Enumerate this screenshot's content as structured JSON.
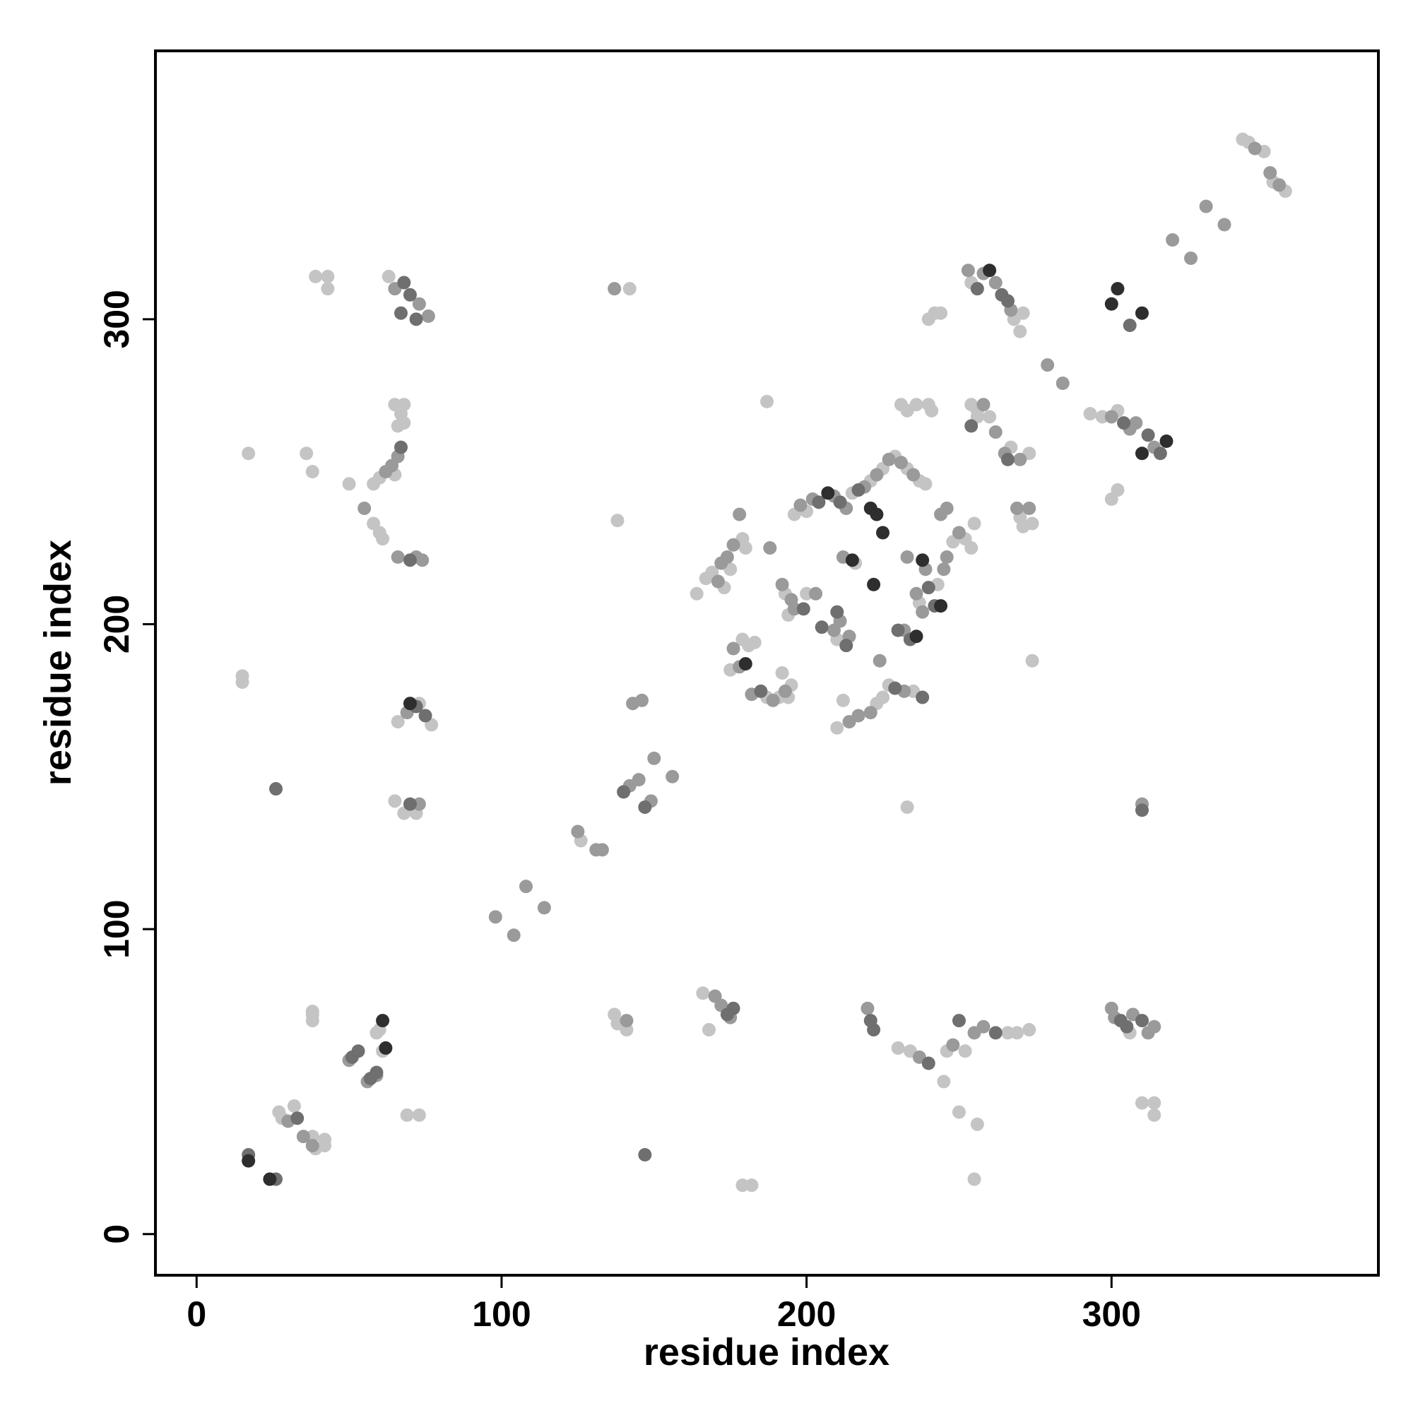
{
  "chart_data": {
    "type": "scatter",
    "xlabel": "residue index",
    "ylabel": "residue index",
    "xlim": [
      -13.5,
      387.5
    ],
    "ylim": [
      -13.5,
      388
    ],
    "xticks": [
      0,
      100,
      200,
      300
    ],
    "yticks": [
      0,
      100,
      200,
      300
    ],
    "grid": false,
    "series": [
      {
        "color": "#c4c4c4",
        "x": [
          27,
          28,
          32,
          38,
          39,
          42,
          42,
          61,
          59,
          60,
          38,
          38,
          38,
          69,
          73,
          65,
          68,
          72,
          77,
          66,
          73,
          65,
          67,
          68,
          66,
          60,
          58,
          65,
          68,
          58,
          60,
          61,
          36,
          38,
          17,
          50,
          39,
          43,
          43,
          63,
          15,
          15,
          126,
          138,
          142,
          137,
          138,
          141,
          166,
          168,
          230,
          234,
          245,
          246,
          252,
          266,
          269,
          273,
          250,
          256,
          255,
          182,
          179,
          306,
          310,
          314,
          314,
          233,
          164,
          167,
          169,
          179,
          180,
          175,
          173,
          179,
          181,
          183,
          175,
          187,
          191,
          195,
          192,
          194,
          193,
          194,
          200,
          210,
          196,
          200,
          215,
          221,
          225,
          229,
          233,
          237,
          239,
          187,
          212,
          210,
          225,
          227,
          235,
          237,
          243,
          248,
          252,
          254,
          255,
          231,
          233,
          236,
          240,
          241,
          240,
          242,
          244,
          254,
          256,
          260,
          256,
          267,
          273,
          270,
          271,
          274,
          274,
          254,
          268,
          270,
          271,
          293,
          297,
          302,
          300,
          302,
          343,
          345,
          350,
          353,
          357,
          223,
          216
        ],
        "values": [
          40,
          38,
          42,
          32,
          28,
          29,
          31,
          60,
          66,
          67,
          72,
          70,
          73,
          39,
          39,
          142,
          138,
          138,
          167,
          168,
          174,
          272,
          269,
          272,
          265,
          248,
          246,
          249,
          266,
          233,
          230,
          228,
          256,
          250,
          256,
          246,
          314,
          314,
          310,
          314,
          181,
          183,
          129,
          234,
          310,
          72,
          69,
          67,
          79,
          67,
          61,
          60,
          50,
          60,
          60,
          66,
          66,
          67,
          40,
          36,
          18,
          16,
          16,
          66,
          43,
          39,
          43,
          140,
          210,
          215,
          217,
          228,
          225,
          218,
          212,
          195,
          193,
          194,
          185,
          176,
          176,
          180,
          184,
          176,
          210,
          203,
          210,
          195,
          236,
          237,
          243,
          247,
          251,
          255,
          251,
          247,
          246,
          273,
          175,
          166,
          176,
          180,
          178,
          207,
          213,
          227,
          228,
          225,
          233,
          272,
          270,
          272,
          272,
          270,
          300,
          302,
          302,
          272,
          270,
          268,
          268,
          258,
          256,
          235,
          232,
          233,
          188,
          312,
          300,
          296,
          302,
          269,
          268,
          270,
          241,
          244,
          359,
          358,
          355,
          345,
          342,
          174,
          220
        ]
      },
      {
        "color": "#9a9a9a",
        "x": [
          30,
          35,
          38,
          50,
          56,
          59,
          66,
          64,
          62,
          55,
          69,
          73,
          66,
          72,
          74,
          65,
          73,
          76,
          98,
          104,
          108,
          114,
          125,
          131,
          133,
          142,
          145,
          149,
          150,
          156,
          143,
          146,
          137,
          141,
          170,
          172,
          175,
          220,
          237,
          248,
          255,
          258,
          300,
          301,
          307,
          312,
          314,
          310,
          171,
          172,
          174,
          176,
          178,
          178,
          176,
          182,
          189,
          193,
          188,
          192,
          195,
          196,
          203,
          209,
          211,
          214,
          198,
          202,
          209,
          213,
          219,
          223,
          227,
          231,
          235,
          212,
          214,
          217,
          221,
          224,
          232,
          233,
          236,
          238,
          239,
          245,
          246,
          250,
          244,
          246,
          232,
          258,
          262,
          265,
          270,
          269,
          273,
          258,
          262,
          267,
          279,
          284,
          306,
          308,
          314,
          300,
          320,
          326,
          331,
          337,
          347,
          352,
          355,
          253
        ],
        "values": [
          37,
          32,
          29,
          57,
          50,
          52,
          255,
          252,
          250,
          238,
          171,
          141,
          222,
          222,
          221,
          310,
          305,
          301,
          104,
          98,
          114,
          107,
          132,
          126,
          126,
          147,
          149,
          142,
          156,
          150,
          174,
          175,
          310,
          70,
          78,
          75,
          71,
          74,
          58,
          62,
          66,
          68,
          74,
          71,
          72,
          66,
          68,
          141,
          214,
          220,
          222,
          226,
          236,
          186,
          192,
          177,
          175,
          178,
          225,
          213,
          208,
          205,
          210,
          198,
          201,
          196,
          239,
          241,
          242,
          238,
          245,
          249,
          254,
          253,
          249,
          222,
          168,
          170,
          171,
          188,
          178,
          222,
          210,
          204,
          218,
          218,
          222,
          230,
          236,
          238,
          198,
          272,
          263,
          256,
          254,
          238,
          238,
          315,
          312,
          303,
          285,
          279,
          264,
          266,
          258,
          268,
          326,
          320,
          337,
          331,
          356,
          348,
          344,
          316
        ]
      },
      {
        "color": "#6f6f6f",
        "x": [
          17,
          26,
          33,
          51,
          53,
          57,
          59,
          26,
          70,
          72,
          75,
          70,
          67,
          68,
          70,
          72,
          67,
          140,
          147,
          147,
          174,
          176,
          221,
          222,
          240,
          250,
          262,
          303,
          305,
          310,
          185,
          199,
          205,
          210,
          213,
          204,
          211,
          217,
          230,
          234,
          240,
          242,
          238,
          229,
          254,
          266,
          264,
          266,
          256,
          304,
          312,
          316,
          306,
          310
        ],
        "values": [
          26,
          18,
          38,
          58,
          60,
          51,
          53,
          146,
          141,
          173,
          170,
          221,
          258,
          312,
          308,
          300,
          302,
          145,
          140,
          26,
          72,
          74,
          70,
          67,
          56,
          70,
          66,
          70,
          68,
          70,
          178,
          205,
          199,
          204,
          193,
          240,
          240,
          244,
          198,
          195,
          212,
          206,
          176,
          179,
          265,
          254,
          308,
          306,
          310,
          266,
          262,
          256,
          298,
          139
        ]
      },
      {
        "color": "#2e2e2e",
        "x": [
          17,
          24,
          61,
          62,
          70,
          207,
          221,
          223,
          225,
          238,
          215,
          222,
          260,
          302,
          310,
          310,
          318,
          300,
          180,
          236,
          244
        ],
        "values": [
          24,
          18,
          70,
          61,
          174,
          243,
          238,
          236,
          230,
          221,
          221,
          213,
          316,
          310,
          302,
          256,
          260,
          305,
          187,
          196,
          206
        ]
      }
    ]
  }
}
